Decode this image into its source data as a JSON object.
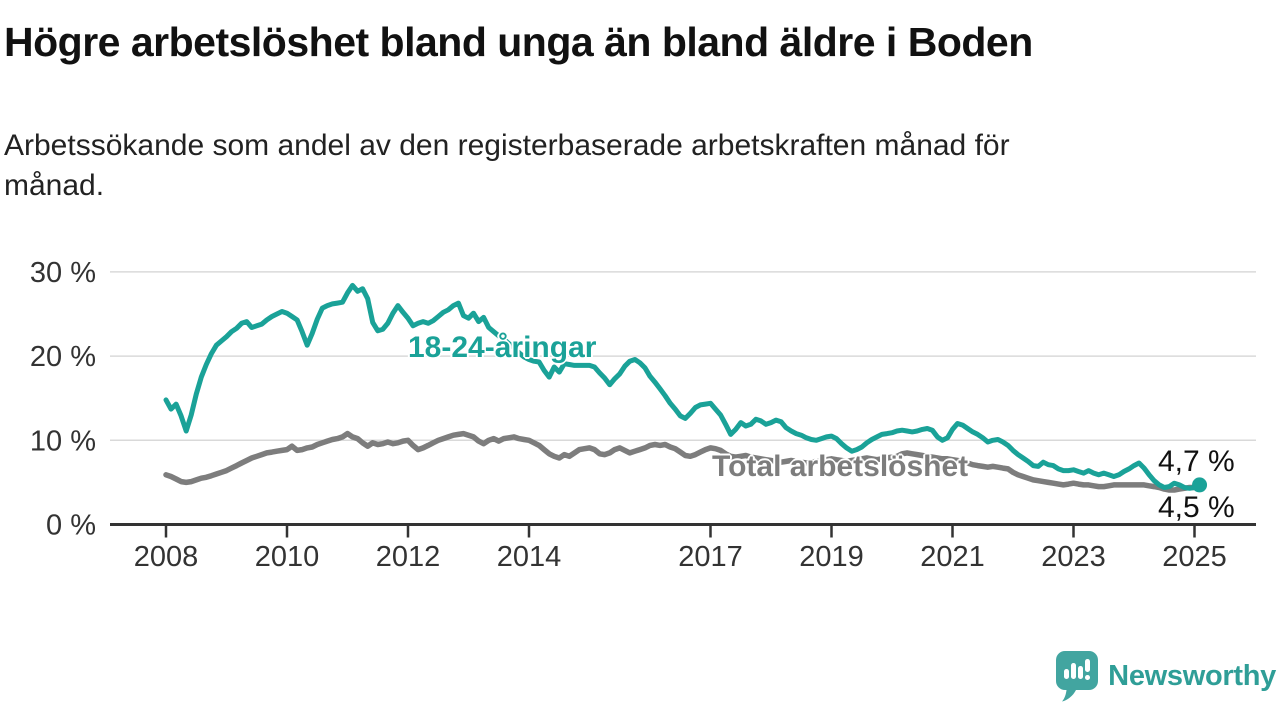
{
  "chart_data": {
    "type": "line",
    "title": "Högre arbetslöshet bland unga än bland äldre i Boden",
    "subtitle_lines": [
      "Arbetssökande som andel av den registerbaserade arbetskraften månad för",
      "månad."
    ],
    "x_start_year": 2008,
    "x_interval": "monthly",
    "xlim_years": [
      2008,
      2025.17
    ],
    "ylim": [
      0,
      30
    ],
    "grid": "horizontal",
    "y_ticks": [
      {
        "v": 30,
        "label": "30 %"
      },
      {
        "v": 20,
        "label": "20 %"
      },
      {
        "v": 10,
        "label": "10 %"
      },
      {
        "v": 0,
        "label": "0 %"
      }
    ],
    "x_ticks": [
      {
        "v": 2008,
        "label": "2008"
      },
      {
        "v": 2010,
        "label": "2010"
      },
      {
        "v": 2012,
        "label": "2012"
      },
      {
        "v": 2014,
        "label": "2014"
      },
      {
        "v": 2017,
        "label": "2017"
      },
      {
        "v": 2019,
        "label": "2019"
      },
      {
        "v": 2021,
        "label": "2021"
      },
      {
        "v": 2023,
        "label": "2023"
      },
      {
        "v": 2025,
        "label": "2025"
      }
    ],
    "series": [
      {
        "name": "18-24-åringar",
        "color": "#1aa298",
        "end_label": "4,7 %",
        "end_dot": true,
        "values": [
          14.8,
          13.7,
          14.3,
          12.9,
          11.1,
          13.0,
          15.5,
          17.5,
          19.0,
          20.3,
          21.3,
          21.8,
          22.3,
          22.9,
          23.3,
          23.9,
          24.1,
          23.4,
          23.6,
          23.8,
          24.3,
          24.7,
          25.0,
          25.3,
          25.1,
          24.7,
          24.3,
          22.9,
          21.3,
          22.7,
          24.4,
          25.7,
          26.0,
          26.2,
          26.3,
          26.4,
          27.5,
          28.4,
          27.7,
          28.0,
          26.8,
          24.0,
          23.0,
          23.2,
          23.9,
          25.1,
          26.0,
          25.2,
          24.5,
          23.6,
          23.9,
          24.1,
          23.9,
          24.2,
          24.7,
          25.2,
          25.5,
          26.0,
          26.3,
          24.8,
          24.5,
          25.1,
          24.1,
          24.6,
          23.4,
          22.9,
          22.4,
          22.0,
          21.5,
          21.0,
          20.4,
          19.9,
          19.6,
          19.4,
          19.3,
          18.3,
          17.5,
          18.7,
          18.1,
          19.1,
          19.0,
          18.9,
          18.9,
          18.9,
          18.9,
          18.7,
          18.0,
          17.4,
          16.6,
          17.3,
          17.9,
          18.8,
          19.4,
          19.6,
          19.2,
          18.6,
          17.6,
          16.9,
          16.1,
          15.3,
          14.4,
          13.7,
          12.9,
          12.6,
          13.2,
          13.9,
          14.2,
          14.3,
          14.4,
          13.7,
          13.0,
          11.9,
          10.7,
          11.3,
          12.1,
          11.7,
          11.9,
          12.5,
          12.3,
          11.9,
          12.1,
          12.4,
          12.2,
          11.5,
          11.1,
          10.8,
          10.6,
          10.3,
          10.1,
          10.0,
          10.2,
          10.4,
          10.5,
          10.2,
          9.6,
          9.1,
          8.7,
          8.9,
          9.2,
          9.7,
          10.1,
          10.4,
          10.7,
          10.8,
          10.9,
          11.1,
          11.2,
          11.1,
          11.0,
          11.1,
          11.3,
          11.4,
          11.2,
          10.4,
          10.0,
          10.3,
          11.3,
          12.0,
          11.8,
          11.4,
          11.0,
          10.7,
          10.3,
          9.8,
          10.0,
          10.1,
          9.8,
          9.4,
          8.8,
          8.3,
          7.9,
          7.5,
          7.0,
          6.9,
          7.4,
          7.1,
          7.0,
          6.6,
          6.4,
          6.4,
          6.5,
          6.3,
          6.1,
          6.4,
          6.1,
          5.9,
          6.1,
          5.9,
          5.7,
          5.9,
          6.3,
          6.6,
          7.0,
          7.3,
          6.7,
          5.9,
          5.2,
          4.7,
          4.4,
          4.5,
          4.9,
          4.7,
          4.4,
          4.3,
          4.4,
          4.7
        ]
      },
      {
        "name": "Total arbetslöshet",
        "color": "#7d7d7d",
        "end_label": "4,5 %",
        "end_dot": false,
        "values": [
          5.9,
          5.7,
          5.4,
          5.1,
          5.0,
          5.1,
          5.3,
          5.5,
          5.6,
          5.8,
          6.0,
          6.2,
          6.4,
          6.7,
          7.0,
          7.3,
          7.6,
          7.9,
          8.1,
          8.3,
          8.5,
          8.6,
          8.7,
          8.8,
          8.9,
          9.3,
          8.8,
          8.9,
          9.1,
          9.2,
          9.5,
          9.7,
          9.9,
          10.1,
          10.2,
          10.4,
          10.8,
          10.4,
          10.2,
          9.7,
          9.3,
          9.7,
          9.5,
          9.6,
          9.8,
          9.6,
          9.7,
          9.9,
          10.0,
          9.4,
          8.9,
          9.1,
          9.4,
          9.7,
          10.0,
          10.2,
          10.4,
          10.6,
          10.7,
          10.8,
          10.6,
          10.4,
          9.9,
          9.6,
          10.0,
          10.2,
          9.9,
          10.2,
          10.3,
          10.4,
          10.2,
          10.1,
          10.0,
          9.7,
          9.4,
          8.9,
          8.4,
          8.1,
          7.9,
          8.3,
          8.1,
          8.5,
          8.9,
          9.0,
          9.1,
          8.9,
          8.4,
          8.3,
          8.5,
          8.9,
          9.1,
          8.8,
          8.5,
          8.7,
          8.9,
          9.1,
          9.4,
          9.5,
          9.4,
          9.5,
          9.2,
          9.0,
          8.6,
          8.2,
          8.1,
          8.3,
          8.6,
          8.9,
          9.1,
          9.0,
          8.8,
          8.4,
          8.1,
          8.0,
          8.1,
          8.2,
          8.0,
          7.9,
          7.8,
          7.7,
          7.6,
          7.5,
          7.4,
          7.5,
          7.6,
          7.5,
          7.4,
          7.3,
          7.4,
          7.5,
          7.6,
          7.7,
          7.8,
          7.7,
          7.6,
          7.5,
          7.6,
          7.7,
          7.8,
          7.9,
          7.8,
          7.7,
          7.8,
          7.9,
          8.0,
          8.1,
          8.4,
          8.5,
          8.4,
          8.3,
          8.2,
          8.1,
          8.0,
          7.9,
          7.8,
          7.8,
          7.7,
          7.6,
          7.5,
          7.3,
          7.1,
          7.0,
          6.9,
          6.8,
          6.9,
          6.8,
          6.7,
          6.6,
          6.2,
          5.9,
          5.7,
          5.5,
          5.3,
          5.2,
          5.1,
          5.0,
          4.9,
          4.8,
          4.7,
          4.8,
          4.9,
          4.8,
          4.7,
          4.7,
          4.6,
          4.5,
          4.5,
          4.6,
          4.7,
          4.7,
          4.7,
          4.7,
          4.7,
          4.7,
          4.7,
          4.6,
          4.5,
          4.4,
          4.2,
          4.1,
          4.1,
          4.2,
          4.3,
          4.4,
          4.4,
          4.5
        ]
      }
    ],
    "axis_color": "#333333",
    "gridline_color": "#d9d9d9"
  },
  "branding": {
    "name": "Newsworthy",
    "icon": "newsworthy-speech-bubble-bar-chart-icon",
    "text_color": "#2f9e97",
    "icon_color": "#42a5a0"
  }
}
